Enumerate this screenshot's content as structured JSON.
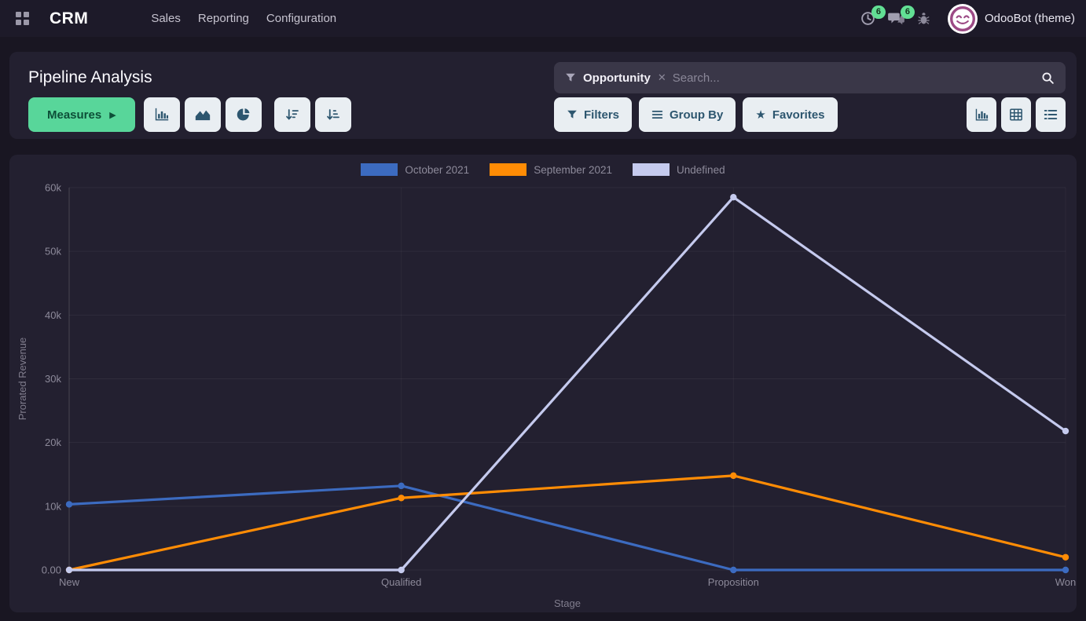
{
  "navbar": {
    "app_name": "CRM",
    "menu_items": [
      "Sales",
      "Reporting",
      "Configuration"
    ],
    "activity_badge": "6",
    "message_badge": "6",
    "user_name": "OdooBot (theme)"
  },
  "control_panel": {
    "title": "Pipeline Analysis",
    "measures_label": "Measures",
    "search": {
      "facet": "Opportunity",
      "remove_glyph": "✕",
      "placeholder": "Search..."
    },
    "filters_label": "Filters",
    "group_by_label": "Group By",
    "favorites_label": "Favorites",
    "favorites_star": "★",
    "chart_type_icons": [
      "bar-chart-icon",
      "area-chart-icon",
      "pie-chart-icon"
    ],
    "sort_icons": [
      "sort-descending-icon",
      "sort-ascending-icon"
    ],
    "view_switcher_icons": [
      "graph-view-icon",
      "pivot-view-icon",
      "list-view-icon"
    ]
  },
  "colors": {
    "accent_green": "#58d69a",
    "badge_green": "#62df94",
    "panel_bg": "#232030",
    "page_bg": "#191622",
    "search_bg": "#3a3748"
  },
  "chart_data": {
    "type": "line",
    "title": "",
    "xlabel": "Stage",
    "ylabel": "Prorated Revenue",
    "categories": [
      "New",
      "Qualified",
      "Proposition",
      "Won"
    ],
    "series": [
      {
        "name": "October 2021",
        "color": "#3c6bc0",
        "values": [
          10300,
          13200,
          0,
          0
        ]
      },
      {
        "name": "September 2021",
        "color": "#ff8c05",
        "values": [
          0,
          11300,
          14800,
          2000
        ]
      },
      {
        "name": "Undefined",
        "color": "#c5caee",
        "values": [
          0,
          0,
          58500,
          21800
        ]
      }
    ],
    "ylim": [
      0,
      60000
    ],
    "yticks": [
      {
        "v": 0,
        "label": "0.00"
      },
      {
        "v": 10000,
        "label": "10k"
      },
      {
        "v": 20000,
        "label": "20k"
      },
      {
        "v": 30000,
        "label": "30k"
      },
      {
        "v": 40000,
        "label": "40k"
      },
      {
        "v": 50000,
        "label": "50k"
      },
      {
        "v": 60000,
        "label": "60k"
      }
    ],
    "grid": true,
    "legend_position": "top"
  }
}
